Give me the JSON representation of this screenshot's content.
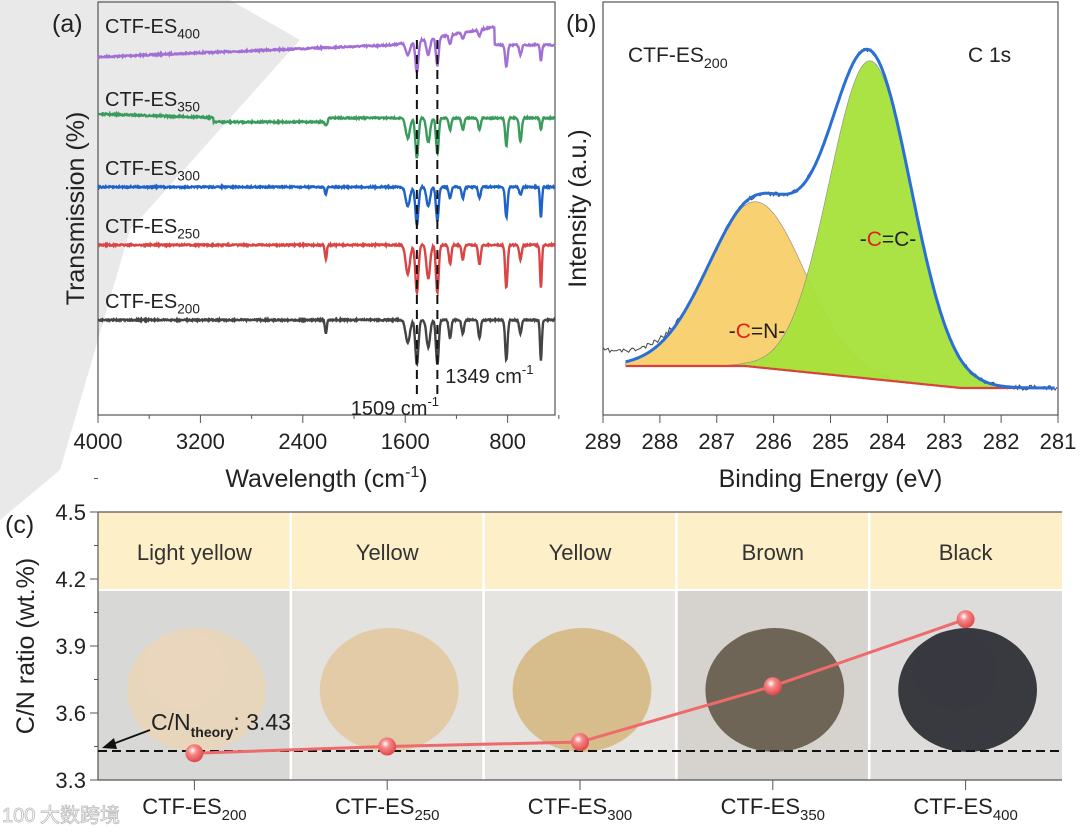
{
  "watermark": {
    "text": "大数跨境",
    "logo": "100"
  },
  "chart_data": [
    {
      "panel": "(a)",
      "type": "line",
      "xlabel": "Wavelength (cm-1)",
      "xlabel_main": "Wavelength (cm",
      "xlabel_sup": "-1",
      "xlabel_end": ")",
      "ylabel": "Transmission (%)",
      "xlim": [
        4000,
        430
      ],
      "xticks": [
        "4000",
        "3200",
        "2400",
        "1600",
        "800"
      ],
      "xtick_values": [
        4000,
        3200,
        2400,
        1600,
        800
      ],
      "reference_lines": [
        {
          "x": 1509,
          "label": "1509 cm",
          "sup": "-1"
        },
        {
          "x": 1349,
          "label": "1349 cm",
          "sup": "-1"
        }
      ],
      "peaks_cm": [
        2220,
        1580,
        1509,
        1420,
        1349,
        1250,
        1150,
        1020,
        810,
        700,
        540
      ],
      "series": [
        {
          "name": "CTF-ES400",
          "main": "CTF-ES",
          "sub": "400",
          "color": "#a46fd4",
          "depths": [
            0,
            0.4,
            1.0,
            0.5,
            0.9,
            0.3,
            0.2,
            0.2,
            0.7,
            0.3,
            0.5
          ]
        },
        {
          "name": "CTF-ES350",
          "main": "CTF-ES",
          "sub": "350",
          "color": "#3a9c5c",
          "depths": [
            0.1,
            0.5,
            1.0,
            0.6,
            0.9,
            0.3,
            0.3,
            0.3,
            0.7,
            0.6,
            0.3
          ]
        },
        {
          "name": "CTF-ES300",
          "main": "CTF-ES",
          "sub": "300",
          "color": "#1e63c8",
          "depths": [
            0.2,
            0.5,
            1.0,
            0.5,
            0.9,
            0.3,
            0.3,
            0.3,
            0.8,
            0.2,
            0.8
          ]
        },
        {
          "name": "CTF-ES250",
          "main": "CTF-ES",
          "sub": "250",
          "color": "#d94545",
          "depths": [
            0.3,
            0.6,
            1.0,
            0.7,
            1.0,
            0.4,
            0.3,
            0.4,
            0.9,
            0.3,
            0.9
          ]
        },
        {
          "name": "CTF-ES200",
          "main": "CTF-ES",
          "sub": "200",
          "color": "#444444",
          "depths": [
            0.3,
            0.5,
            1.0,
            0.6,
            1.0,
            0.4,
            0.3,
            0.4,
            0.9,
            0.3,
            0.9
          ]
        }
      ]
    },
    {
      "panel": "(b)",
      "type": "area",
      "sample_main": "CTF-ES",
      "sample_sub": "200",
      "title": "C 1s",
      "xlabel": "Binding Energy (eV)",
      "ylabel": "Intensity (a.u.)",
      "xlim": [
        289,
        281
      ],
      "xticks": [
        "289",
        "288",
        "287",
        "286",
        "285",
        "284",
        "283",
        "282",
        "281"
      ],
      "components": [
        {
          "label_pre": "-",
          "label_atom": "C",
          "label_post": "=N-",
          "center": 286.3,
          "fwhm": 2.0,
          "height": 0.52,
          "color": "#f7cf6a"
        },
        {
          "label_pre": "-",
          "label_atom": "C",
          "label_post": "=C-",
          "center": 284.3,
          "fwhm": 1.7,
          "height": 1.0,
          "color": "#a6e23a"
        }
      ],
      "envelope_color": "#2a6fd6",
      "background_color": "#d9423a"
    },
    {
      "panel": "(c)",
      "type": "line",
      "ylabel": "C/N ratio (wt.%)",
      "ylim": [
        3.3,
        4.5
      ],
      "yticks": [
        "3.3",
        "3.6",
        "3.9",
        "4.2",
        "4.5"
      ],
      "categories": [
        {
          "main": "CTF-ES",
          "sub": "200",
          "color_label": "Light yellow",
          "powder": "#e8d6bc",
          "bg": "#d8d8d6"
        },
        {
          "main": "CTF-ES",
          "sub": "250",
          "color_label": "Yellow",
          "powder": "#e2cba6",
          "bg": "#e3e2df"
        },
        {
          "main": "CTF-ES",
          "sub": "300",
          "color_label": "Yellow",
          "powder": "#d8bd8c",
          "bg": "#e6e4e0"
        },
        {
          "main": "CTF-ES",
          "sub": "350",
          "color_label": "Brown",
          "powder": "#6f6557",
          "bg": "#d6d3cf"
        },
        {
          "main": "CTF-ES",
          "sub": "400",
          "color_label": "Black",
          "powder": "#383a40",
          "bg": "#dedcda"
        }
      ],
      "values": [
        3.42,
        3.45,
        3.47,
        3.72,
        4.02
      ],
      "theory": {
        "value": 3.43,
        "label_main": "C/N",
        "label_sub": "theory",
        "label_value": ": 3.43"
      },
      "line_color": "#ee6b6b"
    }
  ]
}
